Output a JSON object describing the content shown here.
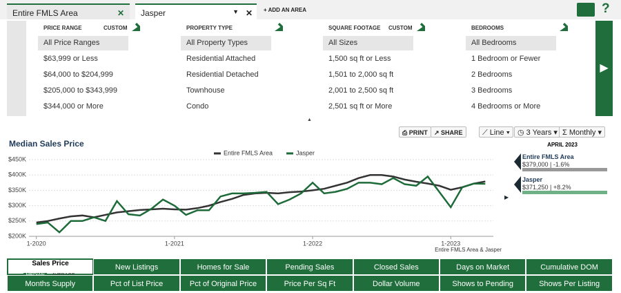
{
  "tabs": [
    "Entire FMLS Area",
    "Jasper"
  ],
  "add_area": "+ ADD AN AREA",
  "filters": [
    {
      "title": "PRICE RANGE",
      "custom": "CUSTOM",
      "options": [
        "All Price Ranges",
        "$63,999 or Less",
        "$64,000 to $204,999",
        "$205,000 to $343,999",
        "$344,000 or More"
      ]
    },
    {
      "title": "PROPERTY TYPE",
      "options": [
        "All Property Types",
        "Residential Attached",
        "Residential Detached",
        "Townhouse",
        "Condo"
      ]
    },
    {
      "title": "SQUARE FOOTAGE",
      "custom": "CUSTOM",
      "options": [
        "All Sizes",
        "1,500 sq ft or Less",
        "1,501 to 2,000 sq ft",
        "2,001 to 2,500 sq ft",
        "2,501 sq ft or More"
      ]
    },
    {
      "title": "BEDROOMS",
      "options": [
        "All Bedrooms",
        "1 Bedroom or Fewer",
        "2 Bedrooms",
        "3 Bedrooms",
        "4 Bedrooms or More"
      ]
    }
  ],
  "toolbar": {
    "print": "PRINT",
    "share": "SHARE",
    "style": "Line",
    "period": "3 Years",
    "interval": "Monthly"
  },
  "chart_data": {
    "type": "line",
    "title": "Median Sales Price",
    "note": "Entire FMLS Area & Jasper",
    "x": [
      0,
      1,
      2,
      3,
      4,
      5,
      6,
      7,
      8,
      9,
      10,
      11,
      12,
      13,
      14,
      15,
      16,
      17,
      18,
      19,
      20,
      21,
      22,
      23,
      24,
      25,
      26,
      27,
      28,
      29,
      30,
      31,
      32,
      33,
      34,
      35,
      36,
      37,
      38,
      39
    ],
    "xlim": [
      -1,
      40
    ],
    "xticks": [
      {
        "value": 0,
        "label": "1-2020"
      },
      {
        "value": 12,
        "label": "1-2021"
      },
      {
        "value": 24,
        "label": "1-2022"
      },
      {
        "value": 36,
        "label": "1-2023"
      }
    ],
    "ylim": [
      200,
      460
    ],
    "yticks": [
      {
        "value": 200,
        "label": "$200K"
      },
      {
        "value": 250,
        "label": "$250K"
      },
      {
        "value": 300,
        "label": "$300K"
      },
      {
        "value": 350,
        "label": "$350K"
      },
      {
        "value": 400,
        "label": "$400K"
      },
      {
        "value": 450,
        "label": "$450K"
      }
    ],
    "grid": true,
    "series": [
      {
        "name": "Entire FMLS Area",
        "color": "#333333",
        "values": [
          245,
          250,
          258,
          265,
          268,
          262,
          270,
          278,
          282,
          286,
          288,
          290,
          288,
          287,
          292,
          300,
          312,
          322,
          335,
          340,
          342,
          340,
          344,
          346,
          350,
          355,
          365,
          375,
          390,
          400,
          400,
          395,
          385,
          378,
          372,
          365,
          352,
          360,
          372,
          379
        ]
      },
      {
        "name": "Jasper",
        "color": "#1e6b3a",
        "values": [
          240,
          245,
          213,
          250,
          250,
          262,
          250,
          315,
          272,
          268,
          290,
          320,
          300,
          270,
          285,
          285,
          330,
          340,
          340,
          342,
          345,
          305,
          320,
          340,
          375,
          340,
          345,
          355,
          375,
          375,
          370,
          390,
          370,
          365,
          395,
          345,
          295,
          360,
          372,
          371.25
        ]
      }
    ]
  },
  "summary": {
    "period": "APRIL 2023",
    "items": [
      {
        "name": "Entire FMLS Area",
        "detail": "$379,000 | -1.6%"
      },
      {
        "name": "Jasper",
        "detail": "$371,250 | +8.2%"
      }
    ]
  },
  "metrics": {
    "active": "Sales Price",
    "modes": [
      "MEDIAN",
      "AVERAGE"
    ],
    "buttons": [
      "New Listings",
      "Homes for Sale",
      "Pending Sales",
      "Closed Sales",
      "Days on Market",
      "Cumulative DOM",
      "Months Supply",
      "Pct of List Price",
      "Pct of Original Price",
      "Price Per Sq Ft",
      "Dollar Volume",
      "Shows to Pending",
      "Shows Per Listing"
    ]
  }
}
